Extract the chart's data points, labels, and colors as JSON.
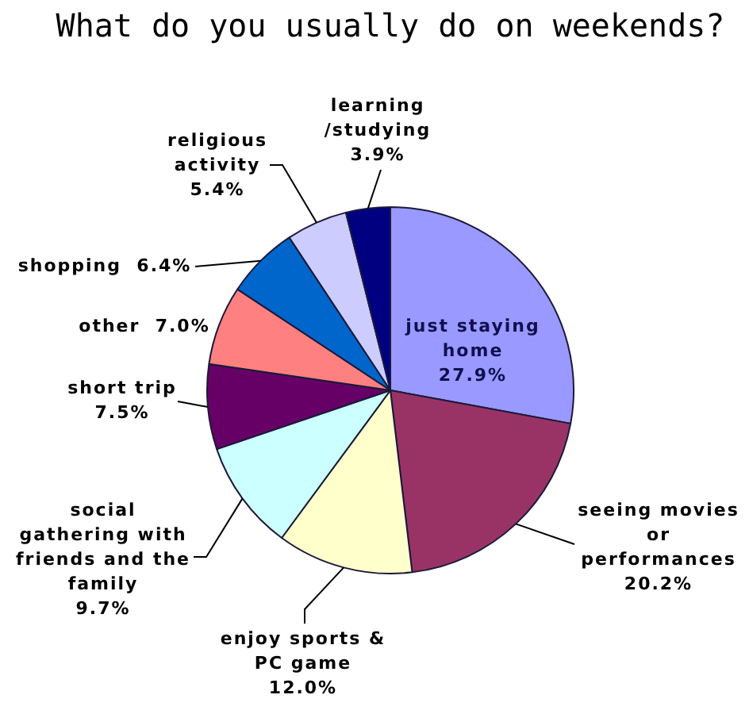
{
  "chart_data": {
    "type": "pie",
    "title": "What do you usually do on weekends?",
    "categories": [
      "just staying home",
      "seeing movies or performances",
      "enjoy sports & PC game",
      "social gathering with friends and the family",
      "short trip",
      "other",
      "shopping",
      "religious activity",
      "learning/studying"
    ],
    "values": [
      27.9,
      20.2,
      12.0,
      9.7,
      7.5,
      7.0,
      6.4,
      5.4,
      3.9
    ],
    "colors": [
      "#9999ff",
      "#993366",
      "#ffffcc",
      "#ccffff",
      "#660066",
      "#ff8080",
      "#0066cc",
      "#ccccff",
      "#000080"
    ],
    "value_labels": [
      "27.9%",
      "20.2%",
      "12.0%",
      "9.7%",
      "7.5%",
      "7.0%",
      "6.4%",
      "5.4%",
      "3.9%"
    ]
  }
}
